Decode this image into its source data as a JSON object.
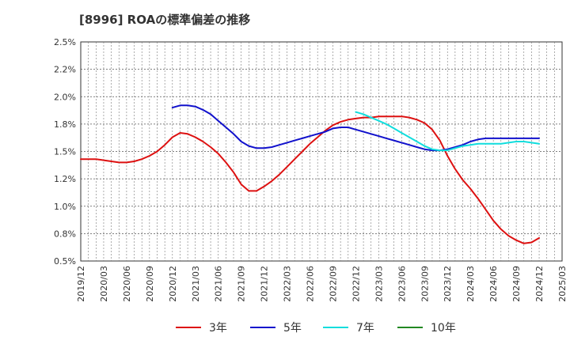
{
  "chart_data": {
    "type": "line",
    "title": "[8996]  ROAの標準偏差の推移",
    "xlabel": "",
    "ylabel": "",
    "ylim": [
      0.5,
      2.5
    ],
    "grid": true,
    "legend": "bottom",
    "y_ticks": [
      "0.5%",
      "0.8%",
      "1.0%",
      "1.2%",
      "1.5%",
      "1.8%",
      "2.0%",
      "2.2%",
      "2.5%"
    ],
    "x_ticks": [
      "2019/12",
      "2020/03",
      "2020/06",
      "2020/09",
      "2020/12",
      "2021/03",
      "2021/06",
      "2021/09",
      "2021/12",
      "2022/03",
      "2022/06",
      "2022/09",
      "2022/12",
      "2023/03",
      "2023/06",
      "2023/09",
      "2023/12",
      "2024/03",
      "2024/06",
      "2024/09",
      "2024/12",
      "2025/03"
    ],
    "series": [
      {
        "name": "3年",
        "color": "#dd1111",
        "points": [
          [
            "2019/12",
            1.43
          ],
          [
            "2020/01",
            1.43
          ],
          [
            "2020/02",
            1.43
          ],
          [
            "2020/03",
            1.42
          ],
          [
            "2020/04",
            1.41
          ],
          [
            "2020/05",
            1.4
          ],
          [
            "2020/06",
            1.4
          ],
          [
            "2020/07",
            1.41
          ],
          [
            "2020/08",
            1.43
          ],
          [
            "2020/09",
            1.46
          ],
          [
            "2020/10",
            1.5
          ],
          [
            "2020/11",
            1.56
          ],
          [
            "2020/12",
            1.63
          ],
          [
            "2021/01",
            1.67
          ],
          [
            "2021/02",
            1.66
          ],
          [
            "2021/03",
            1.63
          ],
          [
            "2021/04",
            1.59
          ],
          [
            "2021/05",
            1.54
          ],
          [
            "2021/06",
            1.48
          ],
          [
            "2021/07",
            1.4
          ],
          [
            "2021/08",
            1.31
          ],
          [
            "2021/09",
            1.2
          ],
          [
            "2021/10",
            1.14
          ],
          [
            "2021/11",
            1.14
          ],
          [
            "2021/12",
            1.18
          ],
          [
            "2022/01",
            1.23
          ],
          [
            "2022/02",
            1.29
          ],
          [
            "2022/03",
            1.36
          ],
          [
            "2022/04",
            1.43
          ],
          [
            "2022/05",
            1.5
          ],
          [
            "2022/06",
            1.57
          ],
          [
            "2022/07",
            1.63
          ],
          [
            "2022/08",
            1.69
          ],
          [
            "2022/09",
            1.74
          ],
          [
            "2022/10",
            1.77
          ],
          [
            "2022/11",
            1.79
          ],
          [
            "2022/12",
            1.8
          ],
          [
            "2023/01",
            1.81
          ],
          [
            "2023/02",
            1.81
          ],
          [
            "2023/03",
            1.82
          ],
          [
            "2023/04",
            1.82
          ],
          [
            "2023/05",
            1.82
          ],
          [
            "2023/06",
            1.82
          ],
          [
            "2023/07",
            1.81
          ],
          [
            "2023/08",
            1.79
          ],
          [
            "2023/09",
            1.76
          ],
          [
            "2023/10",
            1.7
          ],
          [
            "2023/11",
            1.6
          ],
          [
            "2023/12",
            1.46
          ],
          [
            "2024/01",
            1.34
          ],
          [
            "2024/02",
            1.24
          ],
          [
            "2024/03",
            1.16
          ],
          [
            "2024/04",
            1.07
          ],
          [
            "2024/05",
            0.97
          ],
          [
            "2024/06",
            0.87
          ],
          [
            "2024/07",
            0.79
          ],
          [
            "2024/08",
            0.73
          ],
          [
            "2024/09",
            0.69
          ],
          [
            "2024/10",
            0.66
          ],
          [
            "2024/11",
            0.67
          ],
          [
            "2024/12",
            0.71
          ]
        ]
      },
      {
        "name": "5年",
        "color": "#1111cc",
        "points": [
          [
            "2020/12",
            1.9
          ],
          [
            "2021/01",
            1.92
          ],
          [
            "2021/02",
            1.92
          ],
          [
            "2021/03",
            1.91
          ],
          [
            "2021/04",
            1.88
          ],
          [
            "2021/05",
            1.84
          ],
          [
            "2021/06",
            1.78
          ],
          [
            "2021/07",
            1.72
          ],
          [
            "2021/08",
            1.66
          ],
          [
            "2021/09",
            1.59
          ],
          [
            "2021/10",
            1.55
          ],
          [
            "2021/11",
            1.53
          ],
          [
            "2021/12",
            1.53
          ],
          [
            "2022/01",
            1.54
          ],
          [
            "2022/02",
            1.56
          ],
          [
            "2022/03",
            1.58
          ],
          [
            "2022/04",
            1.6
          ],
          [
            "2022/05",
            1.62
          ],
          [
            "2022/06",
            1.64
          ],
          [
            "2022/07",
            1.66
          ],
          [
            "2022/08",
            1.68
          ],
          [
            "2022/09",
            1.71
          ],
          [
            "2022/10",
            1.72
          ],
          [
            "2022/11",
            1.72
          ],
          [
            "2022/12",
            1.7
          ],
          [
            "2023/01",
            1.68
          ],
          [
            "2023/02",
            1.66
          ],
          [
            "2023/03",
            1.64
          ],
          [
            "2023/04",
            1.62
          ],
          [
            "2023/05",
            1.6
          ],
          [
            "2023/06",
            1.58
          ],
          [
            "2023/07",
            1.56
          ],
          [
            "2023/08",
            1.54
          ],
          [
            "2023/09",
            1.52
          ],
          [
            "2023/10",
            1.51
          ],
          [
            "2023/11",
            1.51
          ],
          [
            "2023/12",
            1.52
          ],
          [
            "2024/01",
            1.54
          ],
          [
            "2024/02",
            1.56
          ],
          [
            "2024/03",
            1.59
          ],
          [
            "2024/04",
            1.61
          ],
          [
            "2024/05",
            1.62
          ],
          [
            "2024/06",
            1.62
          ],
          [
            "2024/07",
            1.62
          ],
          [
            "2024/08",
            1.62
          ],
          [
            "2024/09",
            1.62
          ],
          [
            "2024/10",
            1.62
          ],
          [
            "2024/11",
            1.62
          ],
          [
            "2024/12",
            1.62
          ]
        ]
      },
      {
        "name": "7年",
        "color": "#11dddd",
        "points": [
          [
            "2022/12",
            1.86
          ],
          [
            "2023/01",
            1.84
          ],
          [
            "2023/02",
            1.81
          ],
          [
            "2023/03",
            1.78
          ],
          [
            "2023/04",
            1.75
          ],
          [
            "2023/05",
            1.71
          ],
          [
            "2023/06",
            1.67
          ],
          [
            "2023/07",
            1.63
          ],
          [
            "2023/08",
            1.59
          ],
          [
            "2023/09",
            1.55
          ],
          [
            "2023/10",
            1.52
          ],
          [
            "2023/11",
            1.51
          ],
          [
            "2023/12",
            1.51
          ],
          [
            "2024/01",
            1.53
          ],
          [
            "2024/02",
            1.55
          ],
          [
            "2024/03",
            1.56
          ],
          [
            "2024/04",
            1.57
          ],
          [
            "2024/05",
            1.57
          ],
          [
            "2024/06",
            1.57
          ],
          [
            "2024/07",
            1.57
          ],
          [
            "2024/08",
            1.58
          ],
          [
            "2024/09",
            1.59
          ],
          [
            "2024/10",
            1.59
          ],
          [
            "2024/11",
            1.58
          ],
          [
            "2024/12",
            1.57
          ]
        ]
      },
      {
        "name": "10年",
        "color": "#228822",
        "points": []
      }
    ]
  }
}
